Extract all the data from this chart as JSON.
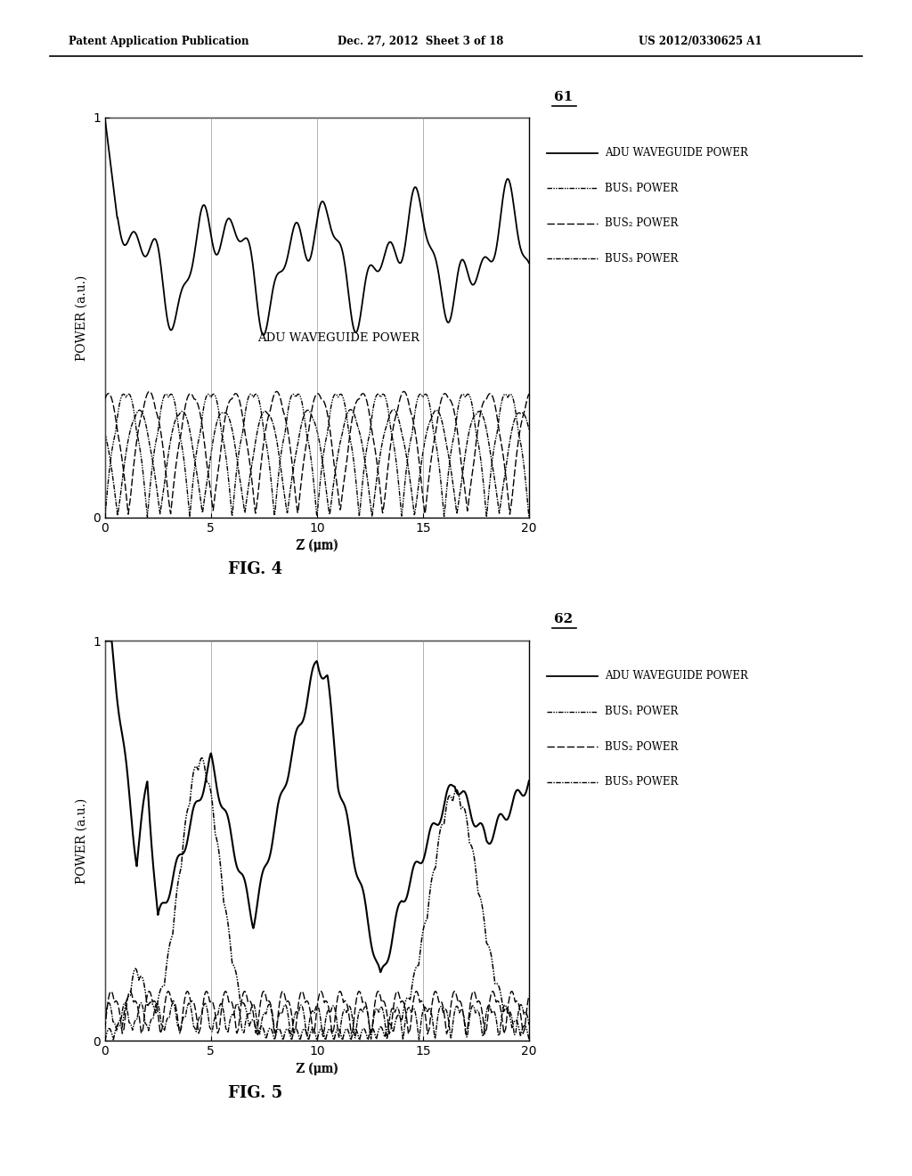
{
  "header_left": "Patent Application Publication",
  "header_mid": "Dec. 27, 2012  Sheet 3 of 18",
  "header_right": "US 2012/0330625 A1",
  "fig4_label": "61",
  "fig5_label": "62",
  "fig4_caption": "FIG. 4",
  "fig5_caption": "FIG. 5",
  "xlabel": "Z (μm)",
  "ylabel": "POWER (a.u.)",
  "xlim": [
    0,
    20
  ],
  "ylim": [
    0,
    1
  ],
  "xticks": [
    0,
    5,
    10,
    15,
    20
  ],
  "yticks": [
    0,
    1
  ],
  "legend_lines": [
    "ADU WAVEGUIDE POWER",
    "BUS₁ POWER",
    "BUS₂ POWER",
    "BUS₃ POWER"
  ],
  "annotation_fig4": "ADU WAVEGUIDE POWER",
  "background_color": "#ffffff"
}
